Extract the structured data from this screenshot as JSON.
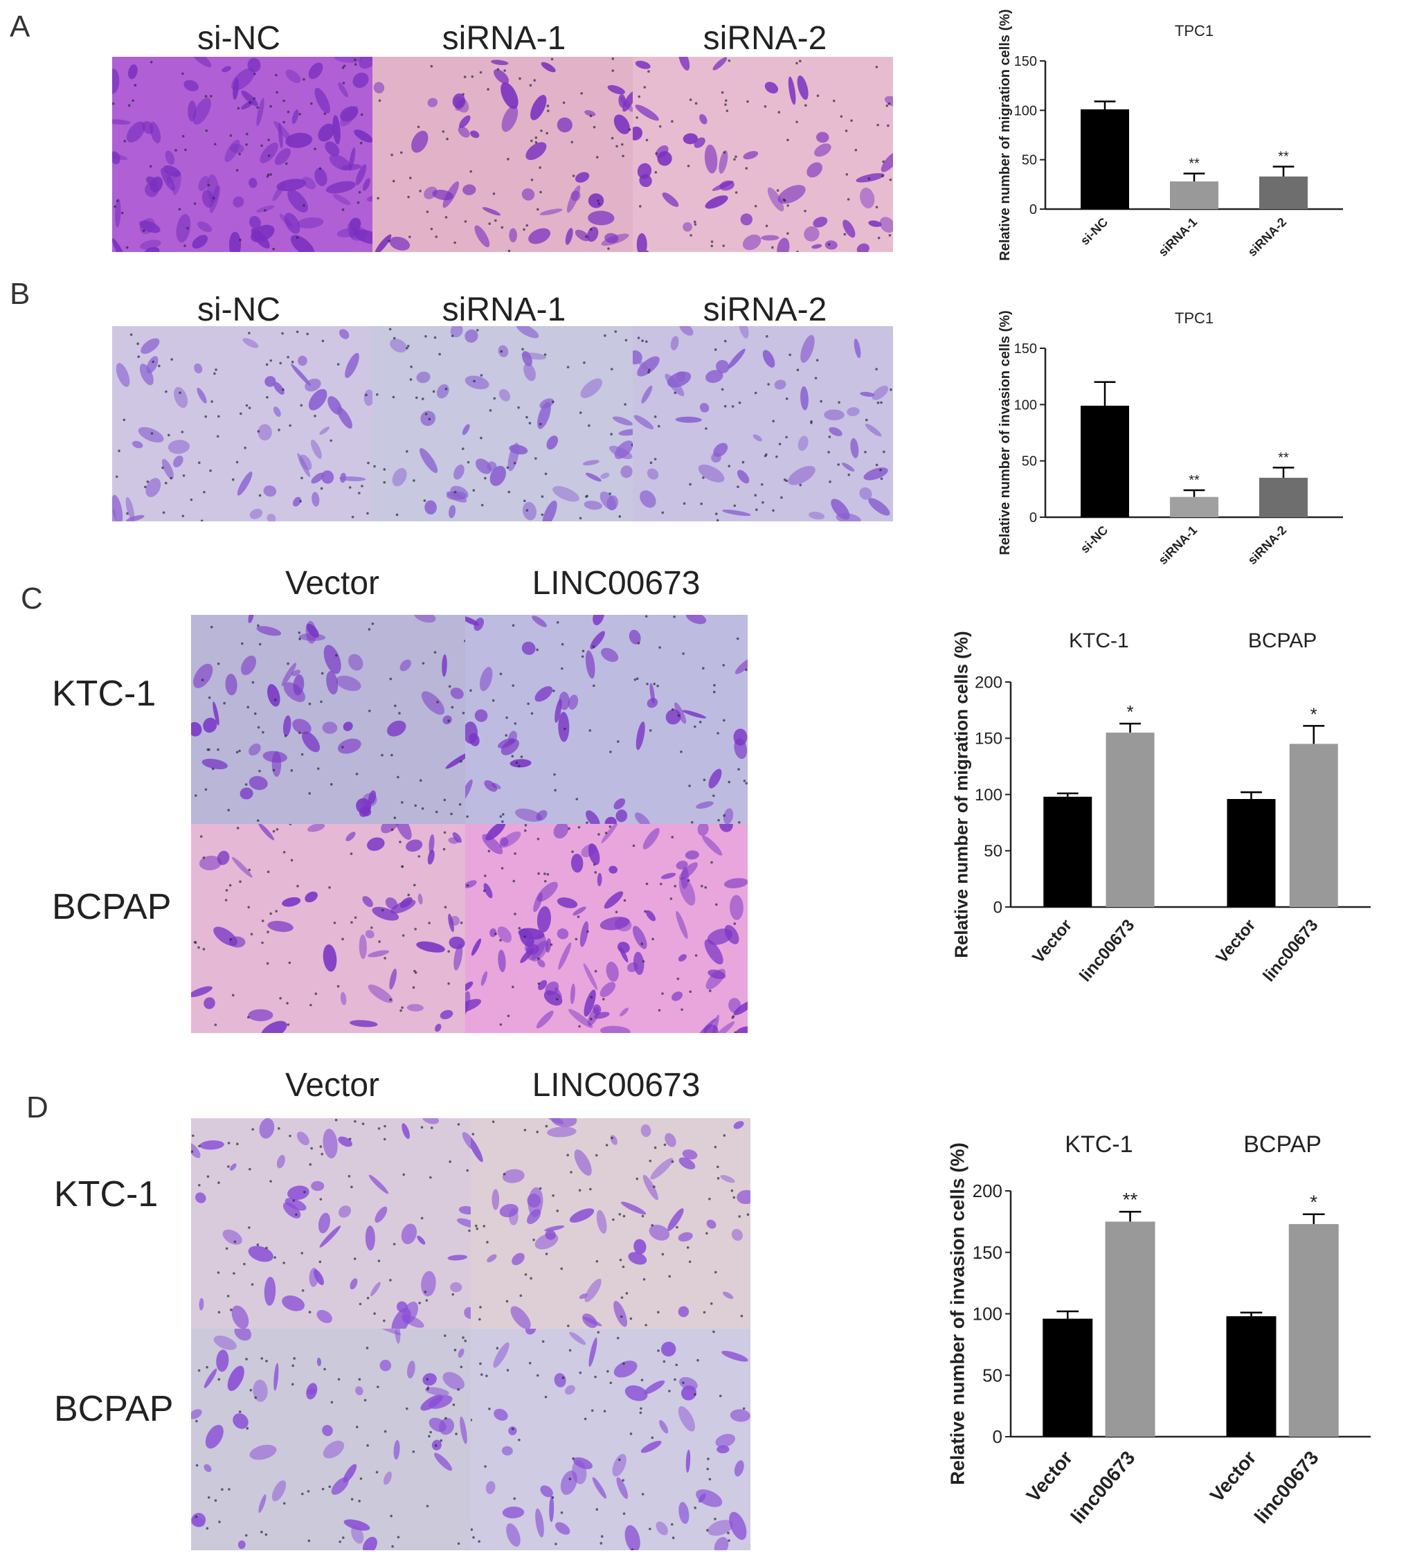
{
  "panels": {
    "A": {
      "letter": "A",
      "columns": [
        "si-NC",
        "siRNA-1",
        "siRNA-2"
      ],
      "image_fill": [
        "#b060d4",
        "#e2b3c8",
        "#e8bcd0"
      ],
      "image_stain": "#7a2fc0"
    },
    "B": {
      "letter": "B",
      "columns": [
        "si-NC",
        "siRNA-1",
        "siRNA-2"
      ],
      "image_fill": [
        "#cfc6e4",
        "#c8c8e0",
        "#c9c2e2"
      ],
      "image_stain": "#8a5fd0"
    },
    "C": {
      "letter": "C",
      "columns": [
        "Vector",
        "LINC00673"
      ],
      "rows": [
        "KTC-1",
        "BCPAP"
      ],
      "image_fill": [
        "#b9b6d8",
        "#bebbe0",
        "#e5b8d6",
        "#e9a6dc"
      ],
      "image_stain": "#7a35c5"
    },
    "D": {
      "letter": "D",
      "columns": [
        "Vector",
        "LINC00673"
      ],
      "rows": [
        "KTC-1",
        "BCPAP"
      ],
      "image_fill": [
        "#d9cbdc",
        "#decfd6",
        "#ccc9da",
        "#cfcbe2"
      ],
      "image_stain": "#8a4fd6"
    }
  },
  "chart_data": [
    {
      "type": "bar",
      "title": "TPC1",
      "ylabel": "Relative number of migration cells (%)",
      "categories": [
        "si-NC",
        "siRNA-1",
        "siRNA-2"
      ],
      "values": [
        101,
        28,
        33
      ],
      "errors": [
        8,
        8,
        10
      ],
      "significance": [
        "",
        "**",
        "**"
      ],
      "colors": [
        "#000000",
        "#999999",
        "#6e6e6e"
      ],
      "ylim": [
        0,
        150
      ],
      "yticks": [
        0,
        50,
        100,
        150
      ]
    },
    {
      "type": "bar",
      "title": "TPC1",
      "ylabel": "Relative number of invasion cells (%)",
      "categories": [
        "si-NC",
        "siRNA-1",
        "siRNA-2"
      ],
      "values": [
        99,
        18,
        35
      ],
      "errors": [
        21,
        6,
        9
      ],
      "significance": [
        "",
        "**",
        "**"
      ],
      "colors": [
        "#000000",
        "#a0a0a0",
        "#6e6e6e"
      ],
      "ylim": [
        0,
        150
      ],
      "yticks": [
        0,
        50,
        100,
        150
      ]
    },
    {
      "type": "bar",
      "ylabel": "Relative number of migration cells (%)",
      "groups": [
        "KTC-1",
        "BCPAP"
      ],
      "categories": [
        "Vector",
        "linc00673",
        "Vector",
        "linc00673"
      ],
      "values": [
        98,
        155,
        96,
        145
      ],
      "errors": [
        3,
        8,
        6,
        16
      ],
      "significance": [
        "",
        "*",
        "",
        "*"
      ],
      "colors": [
        "#000000",
        "#999999",
        "#000000",
        "#999999"
      ],
      "ylim": [
        0,
        200
      ],
      "yticks": [
        0,
        50,
        100,
        150,
        200
      ]
    },
    {
      "type": "bar",
      "ylabel": "Relative number of invasion cells (%)",
      "groups": [
        "KTC-1",
        "BCPAP"
      ],
      "categories": [
        "Vector",
        "linc00673",
        "Vector",
        "linc00673"
      ],
      "values": [
        96,
        175,
        98,
        173
      ],
      "errors": [
        6,
        8,
        3,
        8
      ],
      "significance": [
        "",
        "**",
        "",
        "*"
      ],
      "colors": [
        "#000000",
        "#999999",
        "#000000",
        "#999999"
      ],
      "ylim": [
        0,
        200
      ],
      "yticks": [
        0,
        50,
        100,
        150,
        200
      ]
    }
  ]
}
